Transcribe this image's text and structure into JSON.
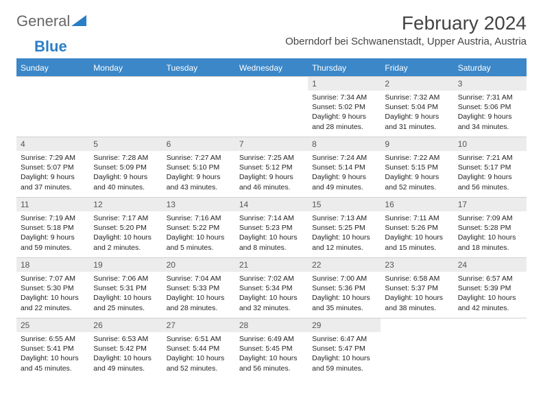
{
  "logo": {
    "text1": "General",
    "text2": "Blue"
  },
  "title": "February 2024",
  "location": "Oberndorf bei Schwanenstadt, Upper Austria, Austria",
  "colors": {
    "header_bg": "#3b87c8",
    "header_text": "#ffffff",
    "daynum_bg": "#ececec",
    "border": "#d0d0d0",
    "logo_accent": "#2a7ec6"
  },
  "typography": {
    "title_fontsize": 28,
    "location_fontsize": 15,
    "header_fontsize": 12,
    "daynum_fontsize": 12,
    "body_fontsize": 10.5
  },
  "weekdays": [
    "Sunday",
    "Monday",
    "Tuesday",
    "Wednesday",
    "Thursday",
    "Friday",
    "Saturday"
  ],
  "weeks": [
    [
      null,
      null,
      null,
      null,
      {
        "n": "1",
        "sr": "Sunrise: 7:34 AM",
        "ss": "Sunset: 5:02 PM",
        "d1": "Daylight: 9 hours",
        "d2": "and 28 minutes."
      },
      {
        "n": "2",
        "sr": "Sunrise: 7:32 AM",
        "ss": "Sunset: 5:04 PM",
        "d1": "Daylight: 9 hours",
        "d2": "and 31 minutes."
      },
      {
        "n": "3",
        "sr": "Sunrise: 7:31 AM",
        "ss": "Sunset: 5:06 PM",
        "d1": "Daylight: 9 hours",
        "d2": "and 34 minutes."
      }
    ],
    [
      {
        "n": "4",
        "sr": "Sunrise: 7:29 AM",
        "ss": "Sunset: 5:07 PM",
        "d1": "Daylight: 9 hours",
        "d2": "and 37 minutes."
      },
      {
        "n": "5",
        "sr": "Sunrise: 7:28 AM",
        "ss": "Sunset: 5:09 PM",
        "d1": "Daylight: 9 hours",
        "d2": "and 40 minutes."
      },
      {
        "n": "6",
        "sr": "Sunrise: 7:27 AM",
        "ss": "Sunset: 5:10 PM",
        "d1": "Daylight: 9 hours",
        "d2": "and 43 minutes."
      },
      {
        "n": "7",
        "sr": "Sunrise: 7:25 AM",
        "ss": "Sunset: 5:12 PM",
        "d1": "Daylight: 9 hours",
        "d2": "and 46 minutes."
      },
      {
        "n": "8",
        "sr": "Sunrise: 7:24 AM",
        "ss": "Sunset: 5:14 PM",
        "d1": "Daylight: 9 hours",
        "d2": "and 49 minutes."
      },
      {
        "n": "9",
        "sr": "Sunrise: 7:22 AM",
        "ss": "Sunset: 5:15 PM",
        "d1": "Daylight: 9 hours",
        "d2": "and 52 minutes."
      },
      {
        "n": "10",
        "sr": "Sunrise: 7:21 AM",
        "ss": "Sunset: 5:17 PM",
        "d1": "Daylight: 9 hours",
        "d2": "and 56 minutes."
      }
    ],
    [
      {
        "n": "11",
        "sr": "Sunrise: 7:19 AM",
        "ss": "Sunset: 5:18 PM",
        "d1": "Daylight: 9 hours",
        "d2": "and 59 minutes."
      },
      {
        "n": "12",
        "sr": "Sunrise: 7:17 AM",
        "ss": "Sunset: 5:20 PM",
        "d1": "Daylight: 10 hours",
        "d2": "and 2 minutes."
      },
      {
        "n": "13",
        "sr": "Sunrise: 7:16 AM",
        "ss": "Sunset: 5:22 PM",
        "d1": "Daylight: 10 hours",
        "d2": "and 5 minutes."
      },
      {
        "n": "14",
        "sr": "Sunrise: 7:14 AM",
        "ss": "Sunset: 5:23 PM",
        "d1": "Daylight: 10 hours",
        "d2": "and 8 minutes."
      },
      {
        "n": "15",
        "sr": "Sunrise: 7:13 AM",
        "ss": "Sunset: 5:25 PM",
        "d1": "Daylight: 10 hours",
        "d2": "and 12 minutes."
      },
      {
        "n": "16",
        "sr": "Sunrise: 7:11 AM",
        "ss": "Sunset: 5:26 PM",
        "d1": "Daylight: 10 hours",
        "d2": "and 15 minutes."
      },
      {
        "n": "17",
        "sr": "Sunrise: 7:09 AM",
        "ss": "Sunset: 5:28 PM",
        "d1": "Daylight: 10 hours",
        "d2": "and 18 minutes."
      }
    ],
    [
      {
        "n": "18",
        "sr": "Sunrise: 7:07 AM",
        "ss": "Sunset: 5:30 PM",
        "d1": "Daylight: 10 hours",
        "d2": "and 22 minutes."
      },
      {
        "n": "19",
        "sr": "Sunrise: 7:06 AM",
        "ss": "Sunset: 5:31 PM",
        "d1": "Daylight: 10 hours",
        "d2": "and 25 minutes."
      },
      {
        "n": "20",
        "sr": "Sunrise: 7:04 AM",
        "ss": "Sunset: 5:33 PM",
        "d1": "Daylight: 10 hours",
        "d2": "and 28 minutes."
      },
      {
        "n": "21",
        "sr": "Sunrise: 7:02 AM",
        "ss": "Sunset: 5:34 PM",
        "d1": "Daylight: 10 hours",
        "d2": "and 32 minutes."
      },
      {
        "n": "22",
        "sr": "Sunrise: 7:00 AM",
        "ss": "Sunset: 5:36 PM",
        "d1": "Daylight: 10 hours",
        "d2": "and 35 minutes."
      },
      {
        "n": "23",
        "sr": "Sunrise: 6:58 AM",
        "ss": "Sunset: 5:37 PM",
        "d1": "Daylight: 10 hours",
        "d2": "and 38 minutes."
      },
      {
        "n": "24",
        "sr": "Sunrise: 6:57 AM",
        "ss": "Sunset: 5:39 PM",
        "d1": "Daylight: 10 hours",
        "d2": "and 42 minutes."
      }
    ],
    [
      {
        "n": "25",
        "sr": "Sunrise: 6:55 AM",
        "ss": "Sunset: 5:41 PM",
        "d1": "Daylight: 10 hours",
        "d2": "and 45 minutes."
      },
      {
        "n": "26",
        "sr": "Sunrise: 6:53 AM",
        "ss": "Sunset: 5:42 PM",
        "d1": "Daylight: 10 hours",
        "d2": "and 49 minutes."
      },
      {
        "n": "27",
        "sr": "Sunrise: 6:51 AM",
        "ss": "Sunset: 5:44 PM",
        "d1": "Daylight: 10 hours",
        "d2": "and 52 minutes."
      },
      {
        "n": "28",
        "sr": "Sunrise: 6:49 AM",
        "ss": "Sunset: 5:45 PM",
        "d1": "Daylight: 10 hours",
        "d2": "and 56 minutes."
      },
      {
        "n": "29",
        "sr": "Sunrise: 6:47 AM",
        "ss": "Sunset: 5:47 PM",
        "d1": "Daylight: 10 hours",
        "d2": "and 59 minutes."
      },
      null,
      null
    ]
  ]
}
